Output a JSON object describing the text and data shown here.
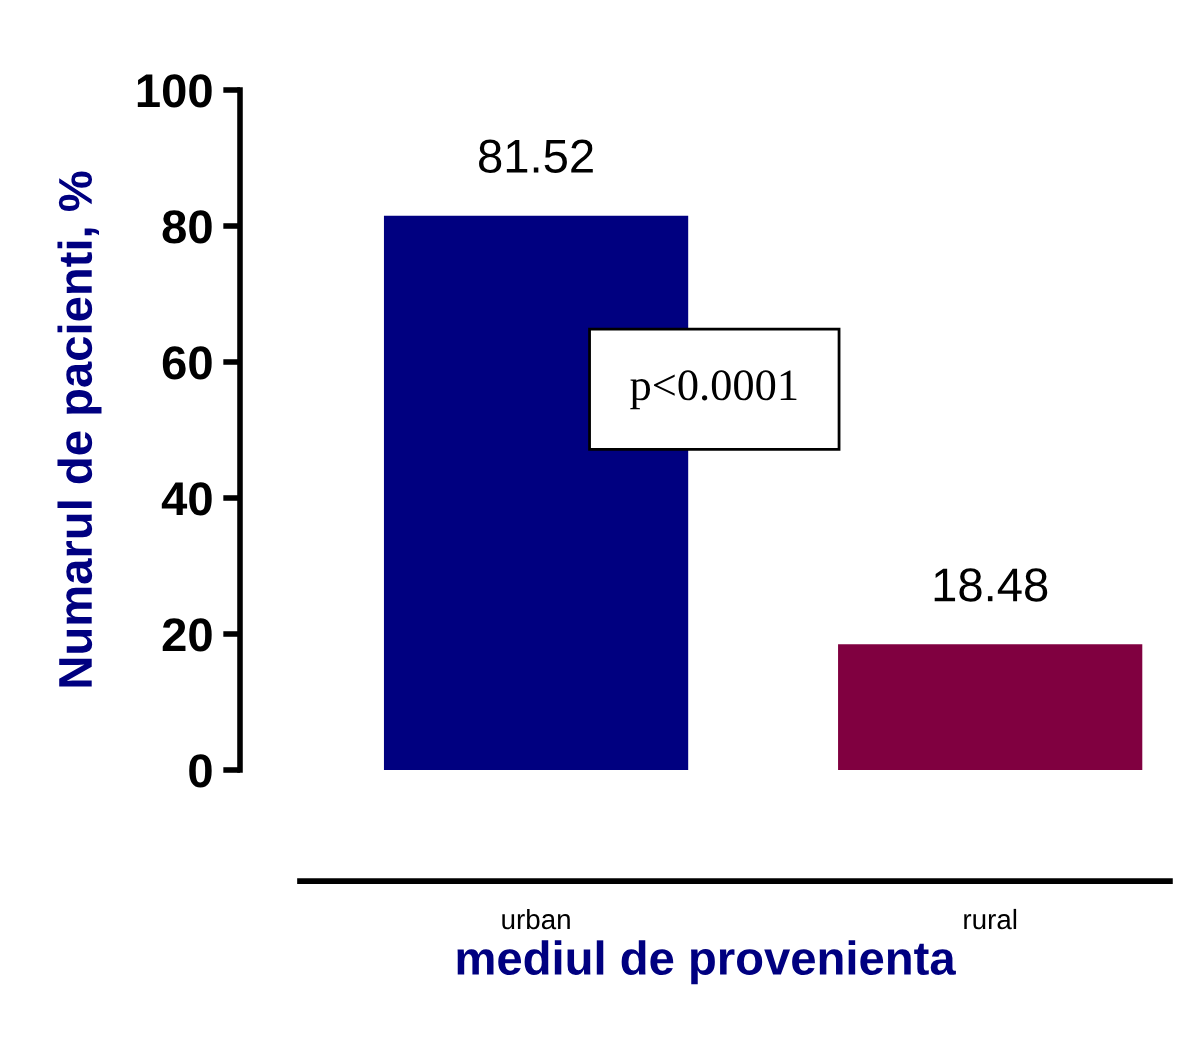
{
  "chart_data": {
    "type": "bar",
    "categories": [
      "urban",
      "rural"
    ],
    "values": [
      81.52,
      18.48
    ],
    "colors": [
      "#000080",
      "#800040"
    ],
    "ylabel": "Numarul de pacienti, %",
    "xlabel": "mediul de provenienta",
    "ylim": [
      0,
      100
    ],
    "yticks": [
      0,
      20,
      40,
      60,
      80,
      100
    ],
    "grid": false,
    "legend": false,
    "data_labels": true,
    "annotations": [
      "p<0.0001"
    ]
  }
}
